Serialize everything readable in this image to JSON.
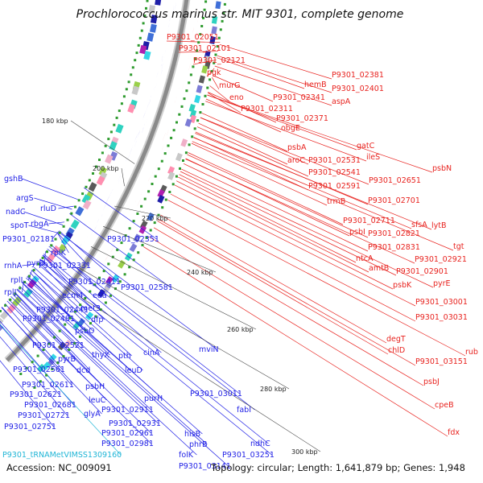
{
  "title": "Prochlorococcus marinus str. MIT 9301, complete genome",
  "footer": {
    "accession": "Accession: NC_009091",
    "summary": "Topology: circular; Length: 1,641,879 bp; Genes: 1,948"
  },
  "colors": {
    "forward": "#e8231f",
    "reverse": "#1f1fe6",
    "trna": "#1fb5d6",
    "backbone": "#8a8a8a",
    "tick_dot": "#2e9b2e"
  },
  "ticks": [
    "180 kbp",
    "200 kbp",
    "220 kbp",
    "240 kbp",
    "260 kbp",
    "280 kbp",
    "300 kbp"
  ],
  "forward_labels": [
    "P9301_02051",
    "P9301_02101",
    "P9301_02121",
    "pgk",
    "murG",
    "eno",
    "P9301_02311",
    "P9301_02341",
    "hemB",
    "P9301_02381",
    "P9301_02401",
    "aspA",
    "P9301_02371",
    "obgE",
    "psbA",
    "aroC",
    "P9301_02531",
    "gatC",
    "ileS",
    "P9301_02541",
    "P9301_02591",
    "psbN",
    "P9301_02651",
    "trmB",
    "P9301_02701",
    "P9301_02711",
    "sfsA",
    "lytB",
    "psbI",
    "P9301_02821",
    "P9301_02831",
    "tgt",
    "ntcA",
    "amtB",
    "P9301_02921",
    "P9301_02901",
    "psbK",
    "pyrE",
    "P9301_03001",
    "P9301_03031",
    "degT",
    "chlD",
    "rub",
    "P9301_03151",
    "psbJ",
    "cpeB",
    "fdx"
  ],
  "reverse_labels": [
    "gshB",
    "argS",
    "nadC",
    "rluD",
    "spoT",
    "rbgA",
    "P9301_02181",
    "P9301_02351",
    "rplK",
    "pyrD",
    "rnhA",
    "P9301_02331",
    "rplL",
    "rplJ",
    "P9301_02411",
    "ecm4",
    "eda",
    "P9301_02581",
    "P9301_02441",
    "met3",
    "P9301_02481",
    "dfp",
    "psbO",
    "P9301_02521",
    "pyrB",
    "P9301_02561",
    "thyX",
    "pth",
    "cinA",
    "mviN",
    "P9301_02611",
    "dcd",
    "leuD",
    "P9301_02621",
    "psbH",
    "P9301_02681",
    "leuC",
    "purH",
    "P9301_03011",
    "P9301_02721",
    "glyA",
    "P9301_02911",
    "P9301_02751",
    "P9301_02931",
    "fabI",
    "P9301_02961",
    "hisB",
    "P9301_02981",
    "phrB",
    "ndhC",
    "folK",
    "P9301_03251",
    "P9301_03141"
  ],
  "trna_label": "P9301_tRNAMetVIMSS1309160"
}
